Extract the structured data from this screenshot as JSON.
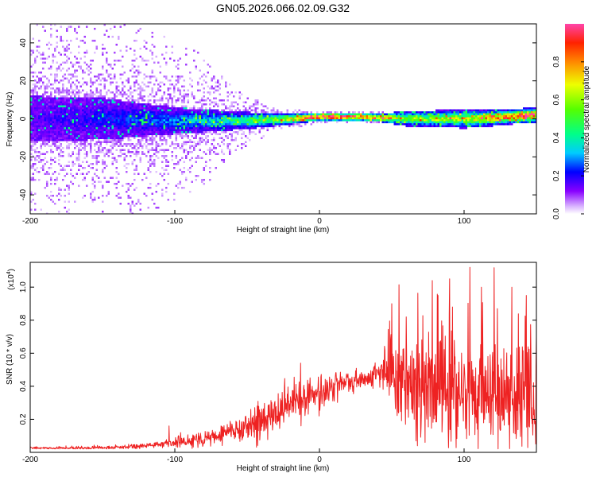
{
  "figure": {
    "title": "GN05.2026.066.02.09.G32"
  },
  "chart_data": [
    {
      "type": "heatmap",
      "title": "GN05.2026.066.02.09.G32",
      "xlabel": "Height of straight line (km)",
      "ylabel": "Frequency (Hz)",
      "xlim": [
        -200,
        150
      ],
      "ylim": [
        -50,
        50
      ],
      "xticks": [
        -200,
        -100,
        0,
        100
      ],
      "yticks": [
        -40,
        -20,
        0,
        20,
        40
      ],
      "xtick_labels": [
        "-200",
        "-100",
        "0",
        "100"
      ],
      "ytick_labels": [
        "-40",
        "-20",
        "0",
        "20",
        "40"
      ],
      "colorbar": {
        "label": "Normalized spectral amplitude",
        "range": [
          0,
          1
        ],
        "ticks": [
          0.0,
          0.2,
          0.4,
          0.6,
          0.8
        ],
        "tick_labels": [
          "0.0",
          "0.2",
          "0.4",
          "0.6",
          "0.8"
        ]
      },
      "band_center_hz": [
        [
          -200,
          0
        ],
        [
          -150,
          0
        ],
        [
          -100,
          -1
        ],
        [
          -50,
          -1
        ],
        [
          -20,
          0
        ],
        [
          0,
          1
        ],
        [
          30,
          1
        ],
        [
          60,
          0
        ],
        [
          90,
          0
        ],
        [
          110,
          0
        ],
        [
          130,
          1
        ],
        [
          150,
          2
        ]
      ],
      "band_halfwidth_hz": [
        [
          -200,
          12
        ],
        [
          -150,
          11
        ],
        [
          -100,
          7
        ],
        [
          -60,
          5
        ],
        [
          -20,
          3
        ],
        [
          0,
          2
        ],
        [
          40,
          2
        ],
        [
          60,
          4
        ],
        [
          100,
          5
        ],
        [
          130,
          4
        ],
        [
          150,
          4
        ]
      ],
      "scatter_extent_hz": [
        [
          -200,
          50
        ],
        [
          -120,
          50
        ],
        [
          -80,
          35
        ],
        [
          -55,
          15
        ],
        [
          -30,
          6
        ],
        [
          0,
          3
        ],
        [
          150,
          3
        ]
      ],
      "peak_amplitude": [
        [
          -200,
          0.15
        ],
        [
          -150,
          0.2
        ],
        [
          -100,
          0.28
        ],
        [
          -60,
          0.4
        ],
        [
          -40,
          0.5
        ],
        [
          -20,
          0.65
        ],
        [
          0,
          0.9
        ],
        [
          30,
          0.85
        ],
        [
          60,
          0.55
        ],
        [
          100,
          0.6
        ],
        [
          140,
          0.9
        ],
        [
          150,
          0.8
        ]
      ]
    },
    {
      "type": "line",
      "xlabel": "Height of straight line (km)",
      "ylabel": "SNR (10 * v/v)",
      "multiplier_label": "(x10",
      "multiplier_exp": "4",
      "multiplier_close": ")",
      "xlim": [
        -200,
        150
      ],
      "ylim": [
        0,
        1.15
      ],
      "xticks": [
        -200,
        -100,
        0,
        100
      ],
      "yticks": [
        0.2,
        0.4,
        0.6,
        0.8,
        1.0
      ],
      "xtick_labels": [
        "-200",
        "-100",
        "0",
        "100"
      ],
      "ytick_labels": [
        "0.2",
        "0.4",
        "0.6",
        "0.8",
        "1.0"
      ],
      "series": [
        {
          "name": "SNR",
          "color": "#ee2222",
          "baseline": [
            [
              -200,
              0.025
            ],
            [
              -160,
              0.025
            ],
            [
              -140,
              0.03
            ],
            [
              -120,
              0.04
            ],
            [
              -100,
              0.06
            ],
            [
              -80,
              0.08
            ],
            [
              -60,
              0.13
            ],
            [
              -40,
              0.2
            ],
            [
              -20,
              0.3
            ],
            [
              -10,
              0.33
            ],
            [
              0,
              0.36
            ],
            [
              10,
              0.39
            ],
            [
              20,
              0.42
            ],
            [
              30,
              0.44
            ],
            [
              40,
              0.47
            ],
            [
              45,
              0.49
            ],
            [
              55,
              0.44
            ],
            [
              70,
              0.37
            ],
            [
              100,
              0.33
            ],
            [
              120,
              0.31
            ],
            [
              150,
              0.3
            ]
          ],
          "noise_amplitude": [
            [
              -200,
              0.01
            ],
            [
              -110,
              0.015
            ],
            [
              -100,
              0.03
            ],
            [
              -60,
              0.06
            ],
            [
              -40,
              0.1
            ],
            [
              -20,
              0.13
            ],
            [
              0,
              0.1
            ],
            [
              30,
              0.05
            ],
            [
              40,
              0.05
            ],
            [
              50,
              0.25
            ],
            [
              100,
              0.3
            ],
            [
              150,
              0.28
            ]
          ],
          "spikes": [
            [
              -104,
              0.16
            ],
            [
              -96,
              0.12
            ],
            [
              -43,
              0.28
            ],
            [
              -13,
              0.54
            ],
            [
              -5,
              0.4
            ],
            [
              50,
              0.9
            ],
            [
              60,
              0.82
            ],
            [
              78,
              1.04
            ],
            [
              82,
              0.95
            ],
            [
              90,
              1.05
            ],
            [
              92,
              0.88
            ],
            [
              104,
              1.12
            ],
            [
              112,
              1.0
            ],
            [
              123,
              0.87
            ],
            [
              133,
              1.0
            ],
            [
              143,
              0.95
            ],
            [
              150,
              0.7
            ]
          ]
        }
      ]
    }
  ]
}
